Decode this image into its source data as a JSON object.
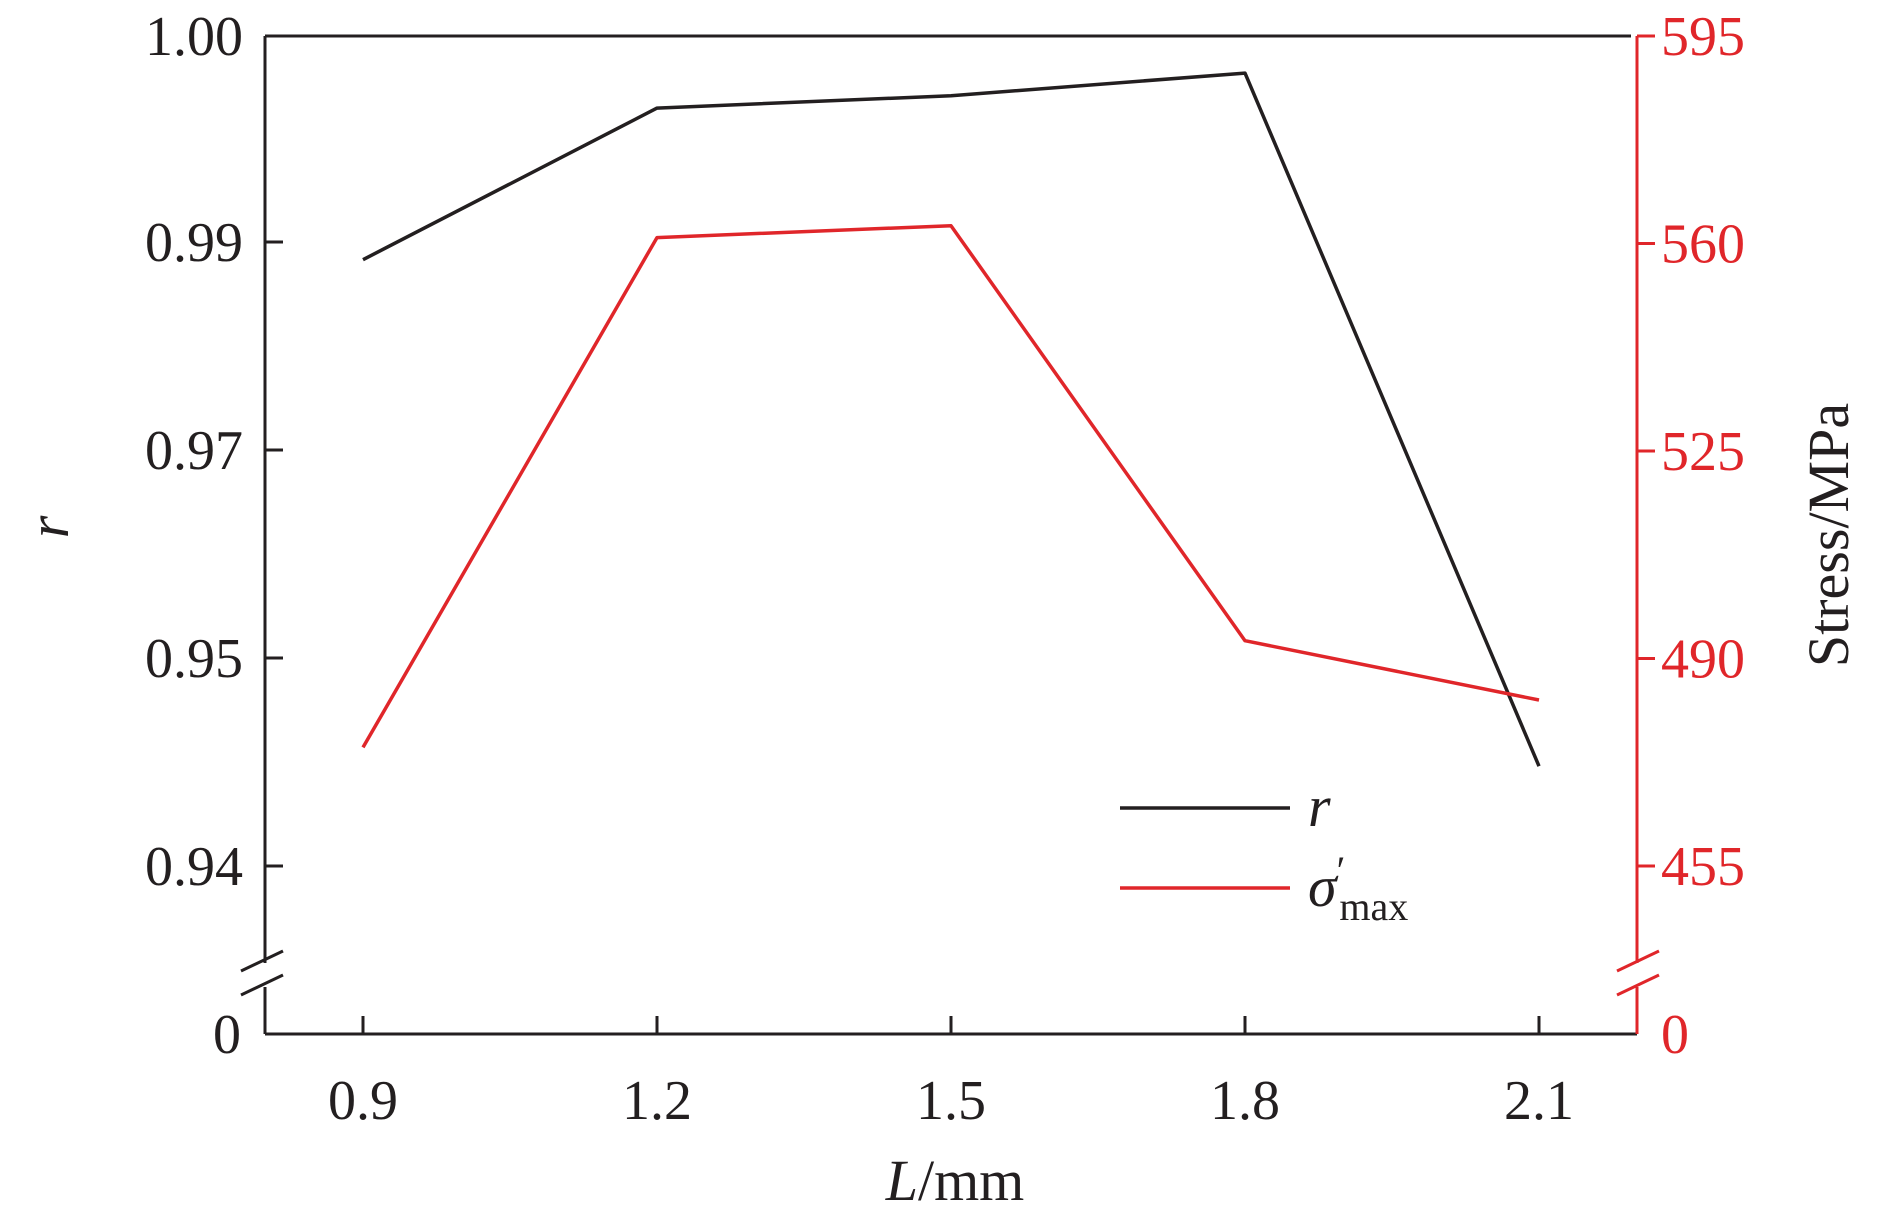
{
  "colors": {
    "r": "#231f20",
    "sigma": "#e0262a",
    "frame": "#231f20"
  },
  "chart_data": {
    "type": "line",
    "x": [
      0.9,
      1.2,
      1.5,
      1.8,
      2.1
    ],
    "xticks": [
      "0.9",
      "1.2",
      "1.5",
      "1.8",
      "2.1"
    ],
    "xlim": [
      0.8,
      2.2
    ],
    "xlabel": {
      "italic": "L",
      "rest": "/mm"
    },
    "left_axis": {
      "label": "r",
      "broken": true,
      "break_zero_label": "0",
      "ticks": [
        {
          "value": 0.94,
          "label": "0.94"
        },
        {
          "value": 0.95,
          "label": "0.95"
        },
        {
          "value": 0.97,
          "label": "0.97"
        },
        {
          "value": 0.99,
          "label": "0.99"
        },
        {
          "value": 1.0,
          "label": "1.00"
        }
      ]
    },
    "right_axis": {
      "label": "Stress/MPa",
      "broken": true,
      "break_zero_label": "0",
      "ticks": [
        {
          "value": 455,
          "label": "455"
        },
        {
          "value": 490,
          "label": "490"
        },
        {
          "value": 525,
          "label": "525"
        },
        {
          "value": 560,
          "label": "560"
        },
        {
          "value": 595,
          "label": "595"
        }
      ]
    },
    "series": [
      {
        "name": "r",
        "axis": "left",
        "color": "#231f20",
        "values": [
          0.9883,
          0.9965,
          0.9971,
          0.9982,
          0.9448
        ]
      },
      {
        "name": "σ′max",
        "axis": "right",
        "color": "#e0262a",
        "values": [
          475,
          561,
          563,
          493,
          483
        ]
      }
    ],
    "legend": {
      "position": "bottom-right",
      "items": [
        {
          "symbol": "r",
          "sup": "",
          "sub": ""
        },
        {
          "symbol": "σ",
          "sup": "′",
          "sub": "max"
        }
      ]
    }
  }
}
